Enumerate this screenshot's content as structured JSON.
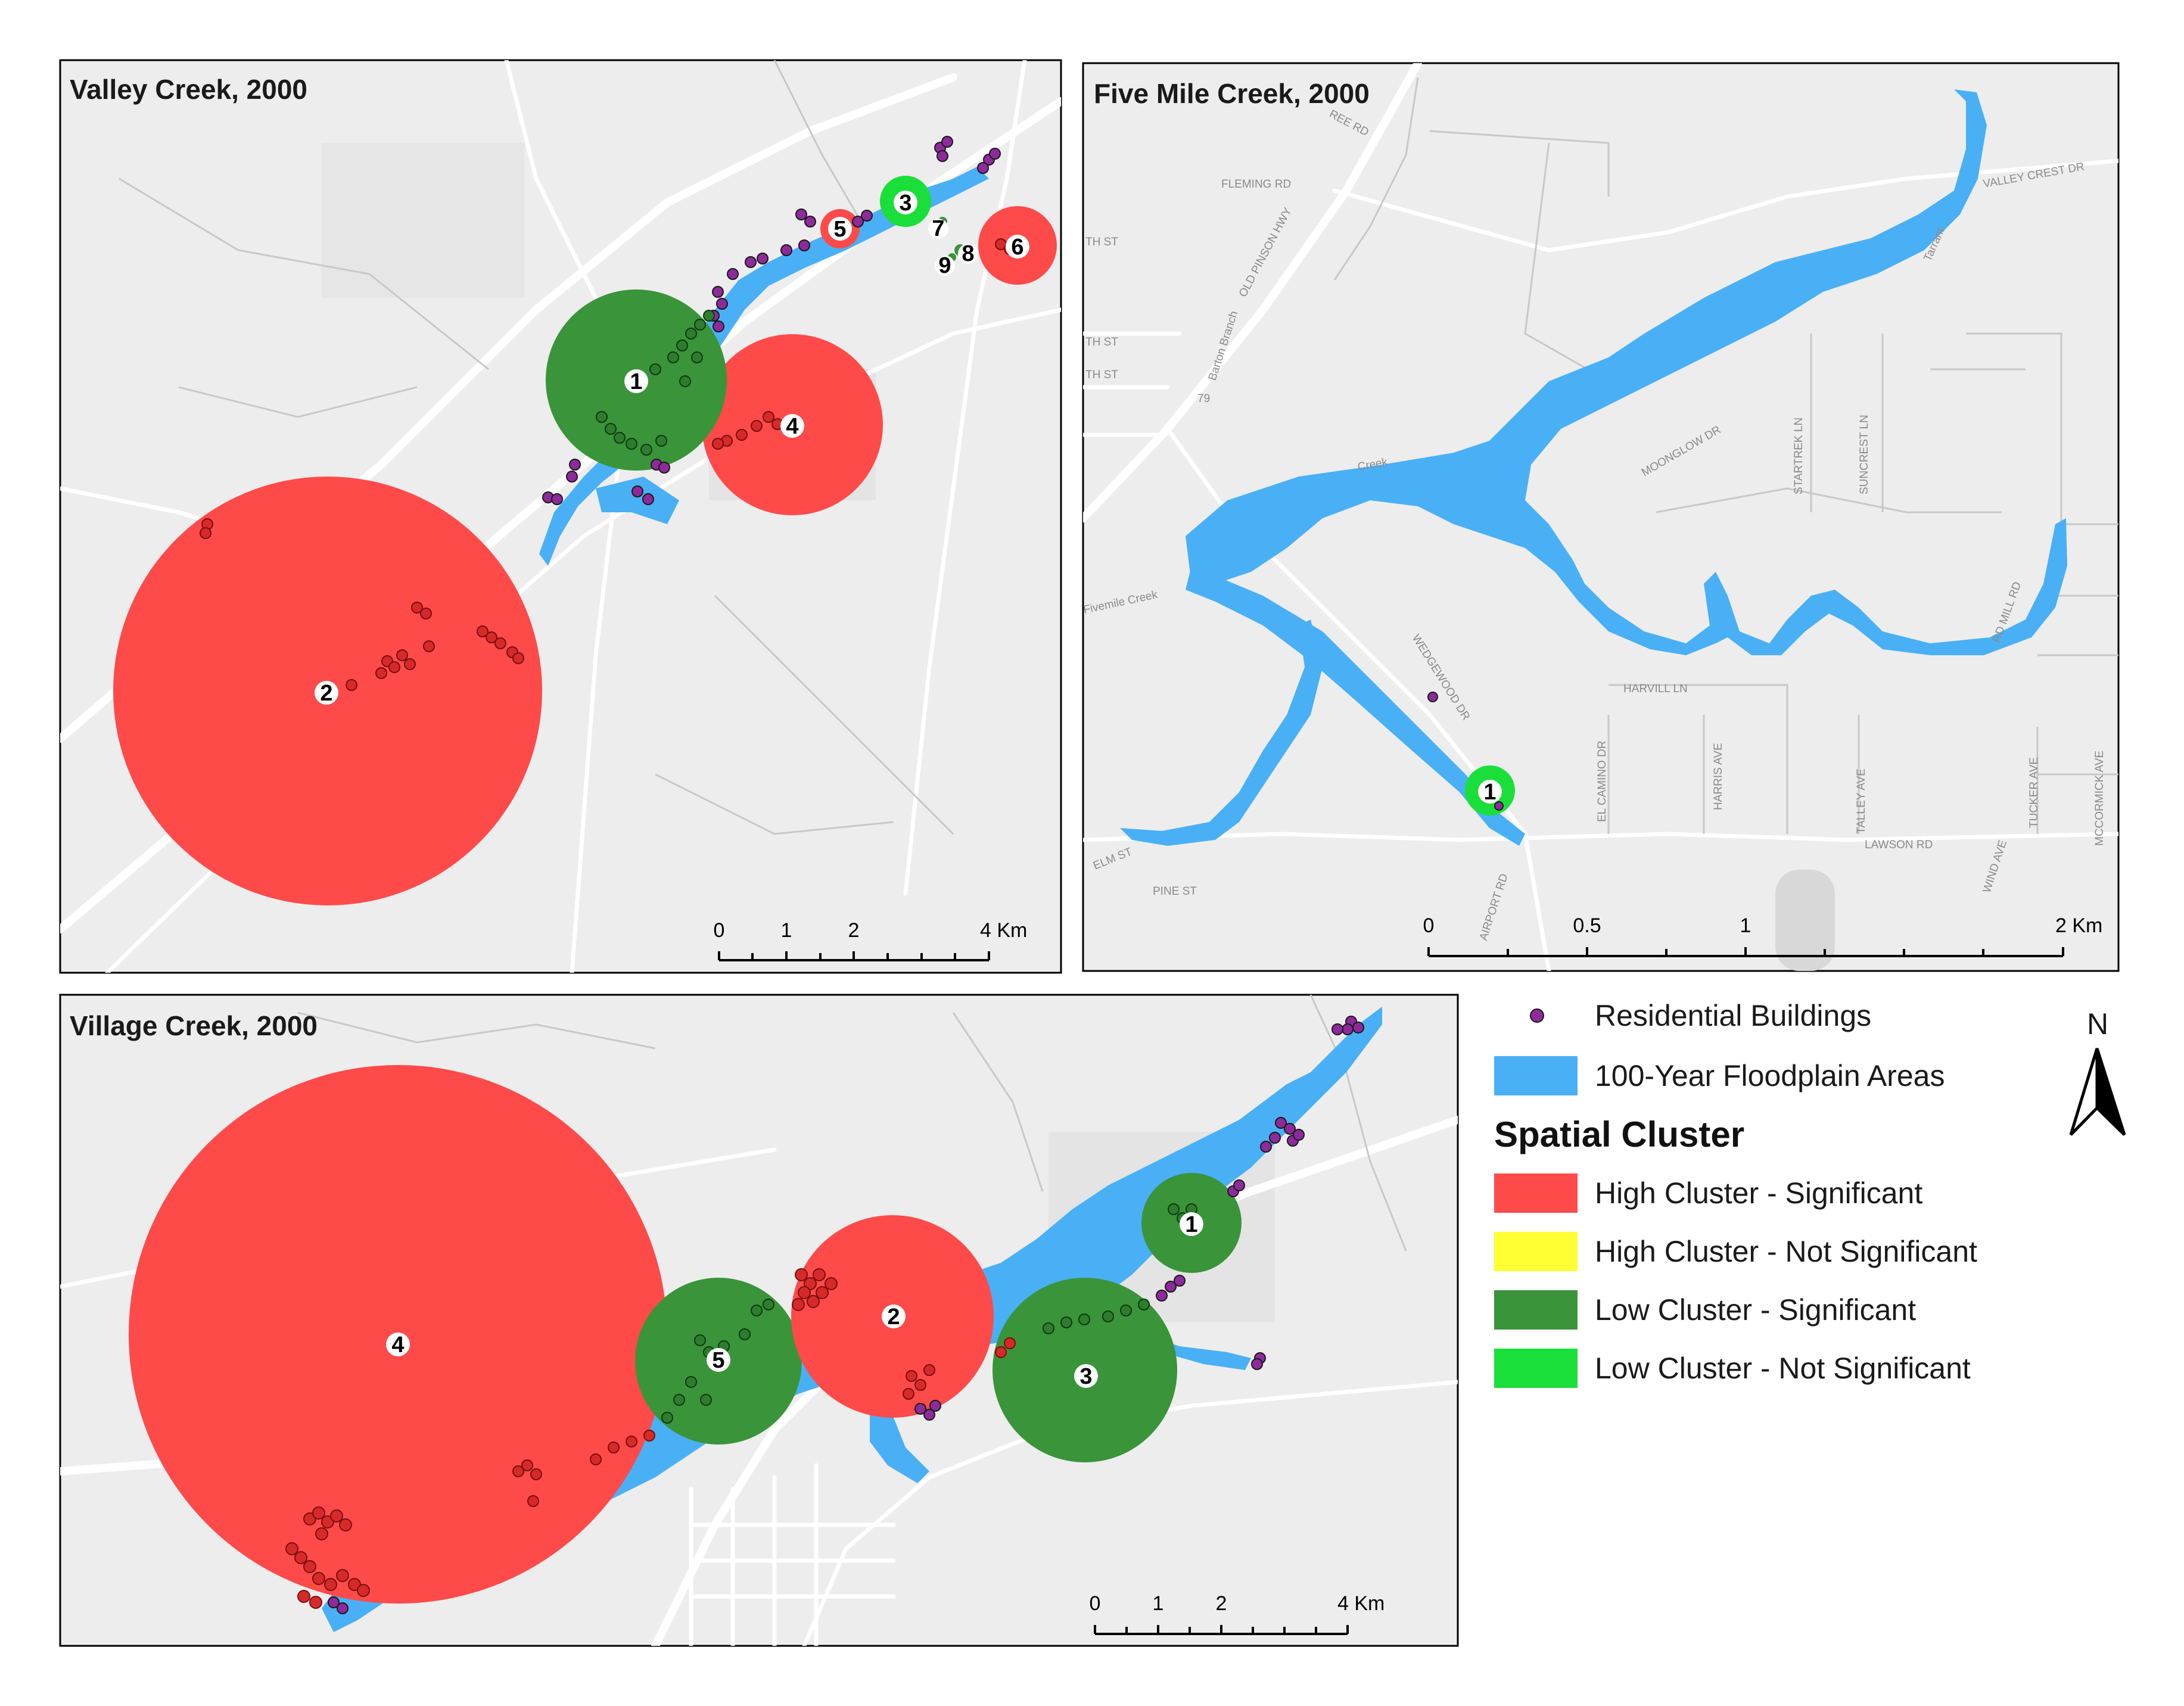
{
  "colors": {
    "high_sig": "#ff4a4a",
    "high_not_sig": "#ffff33",
    "low_sig": "#3a943a",
    "low_not_sig": "#1adf3a",
    "floodplain": "#49b0f5",
    "building": "#8e2a9c"
  },
  "panels": {
    "valley": {
      "title": "Valley Creek, 2000",
      "scale": {
        "labels": [
          "0",
          "1",
          "2",
          "4 Km"
        ]
      },
      "clusters": [
        {
          "id": "1",
          "label": "1",
          "type": "low_sig"
        },
        {
          "id": "2",
          "label": "2",
          "type": "high_sig"
        },
        {
          "id": "3",
          "label": "3",
          "type": "low_not_sig"
        },
        {
          "id": "4",
          "label": "4",
          "type": "high_sig"
        },
        {
          "id": "5",
          "label": "5",
          "type": "high_sig"
        },
        {
          "id": "6",
          "label": "6",
          "type": "high_sig"
        },
        {
          "id": "7",
          "label": "7",
          "type": "low_sig"
        },
        {
          "id": "8",
          "label": "8",
          "type": "low_sig"
        },
        {
          "id": "9",
          "label": "9",
          "type": "low_sig"
        }
      ]
    },
    "fivemile": {
      "title": "Five Mile Creek, 2000",
      "scale": {
        "labels": [
          "0",
          "0.5",
          "1",
          "2 Km"
        ]
      },
      "clusters": [
        {
          "id": "1",
          "label": "1",
          "type": "low_not_sig"
        }
      ],
      "streets": [
        "FLEMING RD",
        "OLD PINSON HWY",
        "VALLEY CREST DR",
        "MOONGLOW DR",
        "STARTREK LN",
        "SUNCREST LN",
        "HARVILL LN",
        "WEDGEWOOD DR",
        "EL CAMINO DR",
        "HARRIS AVE",
        "TALLEY AVE",
        "LAWSON RD",
        "TUCKER AVE",
        "MCCORMICK AVE",
        "WIND AVE",
        "AIRPORT RD",
        "ELM ST",
        "PINE ST",
        "Barton Branch",
        "Fivemile Creek",
        "Tarrant",
        "Creek",
        "REE RD",
        "TH ST",
        "TH ST",
        "TH ST",
        "RD MILL RD",
        "79"
      ]
    },
    "village": {
      "title": "Village Creek, 2000",
      "scale": {
        "labels": [
          "0",
          "1",
          "2",
          "4 Km"
        ]
      },
      "clusters": [
        {
          "id": "1",
          "label": "1",
          "type": "low_sig"
        },
        {
          "id": "2",
          "label": "2",
          "type": "high_sig"
        },
        {
          "id": "3",
          "label": "3",
          "type": "low_sig"
        },
        {
          "id": "4",
          "label": "4",
          "type": "high_sig"
        },
        {
          "id": "5",
          "label": "5",
          "type": "low_sig"
        }
      ]
    }
  },
  "legend": {
    "residential": "Residential Buildings",
    "floodplain": "100-Year Floodplain Areas",
    "heading": "Spatial Cluster",
    "items": [
      {
        "key": "high_sig",
        "label": "High Cluster - Significant"
      },
      {
        "key": "high_not_sig",
        "label": "High Cluster - Not Significant"
      },
      {
        "key": "low_sig",
        "label": "Low Cluster - Significant"
      },
      {
        "key": "low_not_sig",
        "label": "Low Cluster - Not Significant"
      }
    ]
  },
  "north_arrow": {
    "label": "N"
  }
}
